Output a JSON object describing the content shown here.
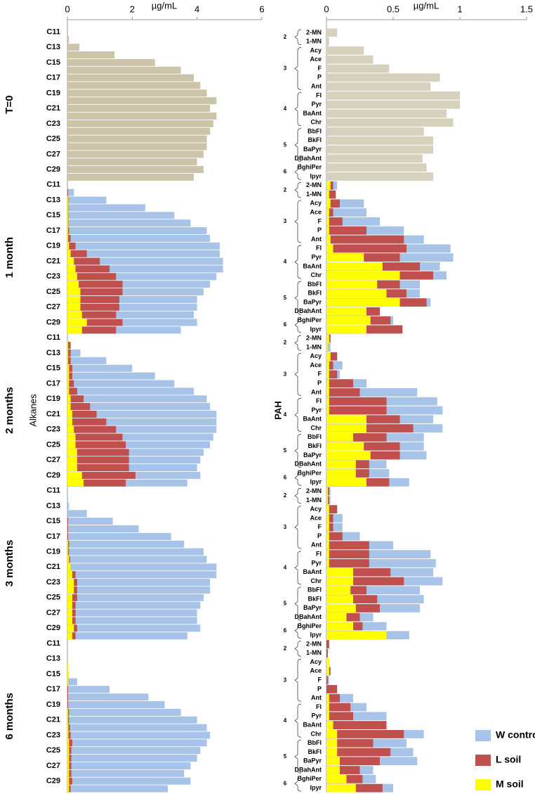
{
  "group_labels": [
    "T=0",
    "1 month",
    "2 months",
    "3 months",
    "6 months"
  ],
  "legend": {
    "position": "lower right",
    "series": [
      {
        "name": "W control",
        "color": "#a7c3e7"
      },
      {
        "name": "L soil",
        "color": "#c0504d"
      },
      {
        "name": "M soil",
        "color": "#ffff00"
      }
    ]
  },
  "chart_data": [
    {
      "type": "bar",
      "orientation": "horizontal",
      "xlabel": "µg/mL",
      "ylabel": "Alkanes",
      "xlim": [
        0,
        6
      ],
      "xticks": [
        0,
        2,
        4,
        6
      ],
      "categories": [
        "C11",
        null,
        "C13",
        null,
        "C15",
        null,
        "C17",
        null,
        "C19",
        null,
        "C21",
        null,
        "C23",
        null,
        "C25",
        null,
        "C27",
        null,
        "C29",
        null
      ],
      "groups": [
        {
          "series": [
            {
              "color": "#cbc4a8",
              "values": [
                0,
                0.05,
                0.37,
                1.45,
                2.7,
                3.5,
                3.9,
                4.1,
                4.3,
                4.6,
                4.4,
                4.6,
                4.5,
                4.4,
                4.3,
                4.3,
                4.2,
                4.0,
                4.2,
                3.9
              ]
            }
          ]
        },
        {
          "series": [
            {
              "values": [
                0,
                0.2,
                1.2,
                2.4,
                3.3,
                3.8,
                4.3,
                4.4,
                4.7,
                4.7,
                4.8,
                4.8,
                4.6,
                4.4,
                4.2,
                4.0,
                4.0,
                3.9,
                4.0,
                3.5
              ]
            },
            {
              "values": [
                0,
                0.02,
                0.03,
                0.03,
                0.03,
                0.03,
                0.05,
                0.1,
                0.25,
                0.6,
                1.0,
                1.3,
                1.5,
                1.7,
                1.7,
                1.6,
                1.6,
                1.5,
                1.7,
                1.5
              ]
            },
            {
              "values": [
                0,
                0,
                0.02,
                0.02,
                0.02,
                0.02,
                0.02,
                0.02,
                0.05,
                0.1,
                0.2,
                0.25,
                0.3,
                0.35,
                0.4,
                0.4,
                0.4,
                0.45,
                0.6,
                0.45
              ]
            }
          ]
        },
        {
          "series": [
            {
              "values": [
                0,
                0.05,
                0.4,
                1.2,
                2.0,
                2.7,
                3.3,
                3.9,
                4.3,
                4.4,
                4.6,
                4.6,
                4.6,
                4.5,
                4.4,
                4.2,
                4.1,
                4.0,
                4.1,
                3.7
              ]
            },
            {
              "values": [
                0,
                0.1,
                0.1,
                0.1,
                0.15,
                0.15,
                0.2,
                0.3,
                0.5,
                0.7,
                0.9,
                1.2,
                1.5,
                1.7,
                1.8,
                1.9,
                1.9,
                1.9,
                2.1,
                1.8
              ]
            },
            {
              "values": [
                0,
                0.02,
                0.02,
                0.02,
                0.05,
                0.05,
                0.05,
                0.05,
                0.1,
                0.1,
                0.15,
                0.15,
                0.2,
                0.25,
                0.25,
                0.3,
                0.3,
                0.3,
                0.45,
                0.5
              ]
            }
          ]
        },
        {
          "series": [
            {
              "values": [
                0,
                0.02,
                0.05,
                0.6,
                1.4,
                2.2,
                3.2,
                3.6,
                4.2,
                4.3,
                4.6,
                4.6,
                4.4,
                4.4,
                4.2,
                4.1,
                4.0,
                4.0,
                4.1,
                3.7
              ]
            },
            {
              "values": [
                0,
                0,
                0,
                0,
                0.02,
                0.02,
                0.02,
                0.05,
                0.05,
                0.08,
                0.1,
                0.25,
                0.3,
                0.3,
                0.3,
                0.25,
                0.25,
                0.25,
                0.3,
                0.25
              ]
            },
            {
              "values": [
                0,
                0,
                0,
                0,
                0,
                0,
                0,
                0.02,
                0.02,
                0.05,
                0.1,
                0.15,
                0.2,
                0.2,
                0.15,
                0.15,
                0.15,
                0.15,
                0.2,
                0.15
              ]
            }
          ]
        },
        {
          "series": [
            {
              "values": [
                0,
                0,
                0,
                0.02,
                0.05,
                0.3,
                1.3,
                2.5,
                3.0,
                3.5,
                4.0,
                4.3,
                4.4,
                4.3,
                4.1,
                4.0,
                3.8,
                3.6,
                3.8,
                3.1
              ]
            },
            {
              "values": [
                0,
                0,
                0,
                0,
                0,
                0,
                0.02,
                0.02,
                0.02,
                0.05,
                0.05,
                0.08,
                0.1,
                0.15,
                0.12,
                0.12,
                0.12,
                0.12,
                0.15,
                0.1
              ]
            },
            {
              "values": [
                0,
                0,
                0,
                0.02,
                0.05,
                0.02,
                0,
                0,
                0,
                0.02,
                0.02,
                0.03,
                0.03,
                0.05,
                0.05,
                0.05,
                0.05,
                0.05,
                0.05,
                0.05
              ]
            }
          ]
        }
      ]
    },
    {
      "type": "bar",
      "orientation": "horizontal",
      "xlabel": "µg/mL",
      "ylabel": "PAH",
      "xlim": [
        0,
        1.5
      ],
      "xticks": [
        0,
        0.5,
        1,
        1.5
      ],
      "ring_groups": [
        {
          "label": "2",
          "categories": [
            "2-MN",
            "1-MN"
          ]
        },
        {
          "label": "3",
          "categories": [
            "Acy",
            "Ace",
            "F",
            "P",
            "Ant"
          ]
        },
        {
          "label": "4",
          "categories": [
            "Fl",
            "Pyr",
            "BaAnt",
            "Chr"
          ]
        },
        {
          "label": "5",
          "categories": [
            "BbFl",
            "BkFl",
            "BaPyr",
            "DBahAnt"
          ]
        },
        {
          "label": "6",
          "categories": [
            "BghiPer",
            "Ipyr"
          ]
        }
      ],
      "groups": [
        {
          "series": [
            {
              "color": "#d6d1bd",
              "values": [
                0.08,
                0.02,
                0.28,
                0.35,
                0.47,
                0.85,
                0.78,
                1.0,
                1.0,
                0.9,
                0.95,
                0.73,
                0.8,
                0.8,
                0.72,
                0.75,
                0.8
              ]
            }
          ]
        },
        {
          "series": [
            {
              "values": [
                0.08,
                0.05,
                0.28,
                0.3,
                0.4,
                0.58,
                0.73,
                0.93,
                0.95,
                0.85,
                0.9,
                0.7,
                0.7,
                0.78,
                0.38,
                0.5,
                0.55
              ]
            },
            {
              "values": [
                0.05,
                0.07,
                0.1,
                0.05,
                0.12,
                0.3,
                0.58,
                0.6,
                0.55,
                0.7,
                0.8,
                0.55,
                0.6,
                0.75,
                0.4,
                0.48,
                0.57
              ]
            },
            {
              "values": [
                0.03,
                0.02,
                0.03,
                0.02,
                0.02,
                0.02,
                0.03,
                0.05,
                0.28,
                0.42,
                0.55,
                0.38,
                0.45,
                0.55,
                0.3,
                0.33,
                0.3
              ]
            }
          ]
        },
        {
          "series": [
            {
              "values": [
                0.03,
                0.03,
                0.08,
                0.12,
                0.1,
                0.3,
                0.68,
                0.83,
                0.87,
                0.8,
                0.87,
                0.73,
                0.73,
                0.75,
                0.45,
                0.47,
                0.62
              ]
            },
            {
              "values": [
                0.03,
                0.01,
                0.08,
                0.05,
                0.08,
                0.2,
                0.25,
                0.45,
                0.45,
                0.55,
                0.65,
                0.45,
                0.55,
                0.55,
                0.32,
                0.32,
                0.47
              ]
            },
            {
              "values": [
                0.02,
                0.01,
                0.03,
                0.02,
                0.02,
                0.02,
                0.02,
                0.02,
                0.02,
                0.3,
                0.3,
                0.2,
                0.28,
                0.33,
                0.22,
                0.22,
                0.3
              ]
            }
          ]
        },
        {
          "series": [
            {
              "values": [
                0.03,
                0.03,
                0.08,
                0.12,
                0.12,
                0.25,
                0.5,
                0.78,
                0.82,
                0.8,
                0.87,
                0.7,
                0.73,
                0.7,
                0.35,
                0.45,
                0.62
              ]
            },
            {
              "values": [
                0.02,
                0.02,
                0.08,
                0.05,
                0.05,
                0.12,
                0.32,
                0.32,
                0.32,
                0.48,
                0.58,
                0.3,
                0.38,
                0.4,
                0.25,
                0.27,
                0.35
              ]
            },
            {
              "values": [
                0.01,
                0.01,
                0.02,
                0.02,
                0.02,
                0.02,
                0.02,
                0.02,
                0.02,
                0.2,
                0.2,
                0.18,
                0.2,
                0.22,
                0.15,
                0.2,
                0.45
              ]
            }
          ]
        },
        {
          "series": [
            {
              "values": [
                0.02,
                0.01,
                0.02,
                0.03,
                0.02,
                0.05,
                0.2,
                0.3,
                0.45,
                0.45,
                0.73,
                0.6,
                0.65,
                0.68,
                0.35,
                0.37,
                0.5
              ]
            },
            {
              "values": [
                0.02,
                0.01,
                0.01,
                0.03,
                0.01,
                0.08,
                0.1,
                0.18,
                0.2,
                0.45,
                0.58,
                0.35,
                0.48,
                0.4,
                0.25,
                0.27,
                0.42
              ]
            },
            {
              "values": [
                0,
                0,
                0.02,
                0.02,
                0,
                0,
                0.02,
                0.02,
                0.02,
                0.05,
                0.08,
                0.08,
                0.08,
                0.1,
                0.1,
                0.15,
                0.22
              ]
            }
          ]
        }
      ]
    }
  ]
}
